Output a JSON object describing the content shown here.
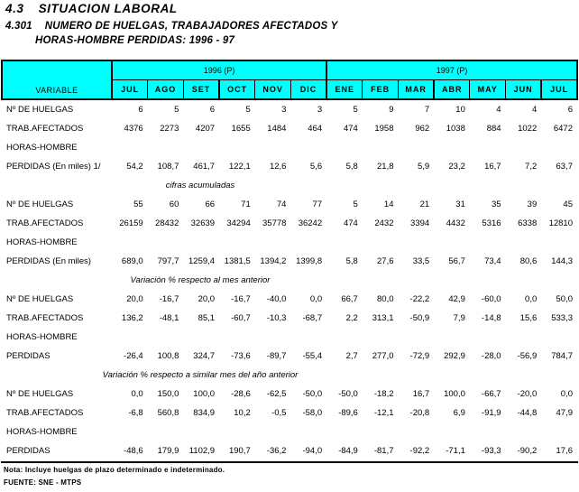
{
  "page": {
    "section_number": "4.3",
    "section_title": "SITUACION LABORAL",
    "table_number": "4.301",
    "table_title_line1": "NUMERO DE HUELGAS, TRABAJADORES AFECTADOS Y",
    "table_title_line2": "HORAS-HOMBRE PERDIDAS: 1996 - 97"
  },
  "colors": {
    "header_bg": "#00ffff",
    "border": "#000000"
  },
  "table": {
    "variable_header": "VARIABLE",
    "year_groups": [
      {
        "label": "1996 (P)",
        "span": 6
      },
      {
        "label": "1997 (P)",
        "span": 7
      }
    ],
    "months": [
      "JUL",
      "AGO",
      "SET",
      "OCT",
      "NOV",
      "DIC",
      "ENE",
      "FEB",
      "MAR",
      "ABR",
      "MAY",
      "JUN",
      "JUL"
    ],
    "blocks": [
      {
        "caption": "",
        "rows": [
          {
            "label": "Nº DE HUELGAS",
            "values": [
              "6",
              "5",
              "6",
              "5",
              "3",
              "3",
              "5",
              "9",
              "7",
              "10",
              "4",
              "4",
              "6"
            ]
          },
          {
            "label": "TRAB.AFECTADOS",
            "values": [
              "4376",
              "2273",
              "4207",
              "1655",
              "1484",
              "464",
              "474",
              "1958",
              "962",
              "1038",
              "884",
              "1022",
              "6472"
            ]
          },
          {
            "label": "HORAS-HOMBRE",
            "values": []
          },
          {
            "label": "PERDIDAS (En miles) 1/",
            "values": [
              "54,2",
              "108,7",
              "461,7",
              "122,1",
              "12,6",
              "5,6",
              "5,8",
              "21,8",
              "5,9",
              "23,2",
              "16,7",
              "7,2",
              "63,7"
            ]
          }
        ]
      },
      {
        "caption": "cifras acumuladas",
        "rows": [
          {
            "label": "Nº DE HUELGAS",
            "values": [
              "55",
              "60",
              "66",
              "71",
              "74",
              "77",
              "5",
              "14",
              "21",
              "31",
              "35",
              "39",
              "45"
            ]
          },
          {
            "label": "TRAB.AFECTADOS",
            "values": [
              "26159",
              "28432",
              "32639",
              "34294",
              "35778",
              "36242",
              "474",
              "2432",
              "3394",
              "4432",
              "5316",
              "6338",
              "12810"
            ]
          },
          {
            "label": "HORAS-HOMBRE",
            "values": []
          },
          {
            "label": "PERDIDAS (En miles)",
            "values": [
              "689,0",
              "797,7",
              "1259,4",
              "1381,5",
              "1394,2",
              "1399,8",
              "5,8",
              "27,6",
              "33,5",
              "56,7",
              "73,4",
              "80,6",
              "144,3"
            ]
          }
        ]
      },
      {
        "caption": "Variación % respecto al mes anterior",
        "rows": [
          {
            "label": "Nº DE HUELGAS",
            "values": [
              "20,0",
              "-16,7",
              "20,0",
              "-16,7",
              "-40,0",
              "0,0",
              "66,7",
              "80,0",
              "-22,2",
              "42,9",
              "-60,0",
              "0,0",
              "50,0"
            ]
          },
          {
            "label": "TRAB.AFECTADOS",
            "values": [
              "136,2",
              "-48,1",
              "85,1",
              "-60,7",
              "-10,3",
              "-68,7",
              "2,2",
              "313,1",
              "-50,9",
              "7,9",
              "-14,8",
              "15,6",
              "533,3"
            ]
          },
          {
            "label": "HORAS-HOMBRE",
            "values": []
          },
          {
            "label": "PERDIDAS",
            "values": [
              "-26,4",
              "100,8",
              "324,7",
              "-73,6",
              "-89,7",
              "-55,4",
              "2,7",
              "277,0",
              "-72,9",
              "292,9",
              "-28,0",
              "-56,9",
              "784,7"
            ]
          }
        ]
      },
      {
        "caption": "Variación % respecto a similar mes del año anterior",
        "rows": [
          {
            "label": "Nº DE HUELGAS",
            "values": [
              "0,0",
              "150,0",
              "100,0",
              "-28,6",
              "-62,5",
              "-50,0",
              "-50,0",
              "-18,2",
              "16,7",
              "100,0",
              "-66,7",
              "-20,0",
              "0,0"
            ]
          },
          {
            "label": "TRAB.AFECTADOS",
            "values": [
              "-6,8",
              "560,8",
              "834,9",
              "10,2",
              "-0,5",
              "-58,0",
              "-89,6",
              "-12,1",
              "-20,8",
              "6,9",
              "-91,9",
              "-44,8",
              "47,9"
            ]
          },
          {
            "label": "HORAS-HOMBRE",
            "values": []
          },
          {
            "label": "PERDIDAS",
            "values": [
              "-48,6",
              "179,9",
              "1102,9",
              "190,7",
              "-36,2",
              "-94,0",
              "-84,9",
              "-81,7",
              "-92,2",
              "-71,1",
              "-93,3",
              "-90,2",
              "17,6"
            ]
          }
        ]
      }
    ]
  },
  "footer": {
    "note": "Nota: Incluye huelgas de plazo determinado e indeterminado.",
    "source": "FUENTE: SNE - MTPS"
  }
}
